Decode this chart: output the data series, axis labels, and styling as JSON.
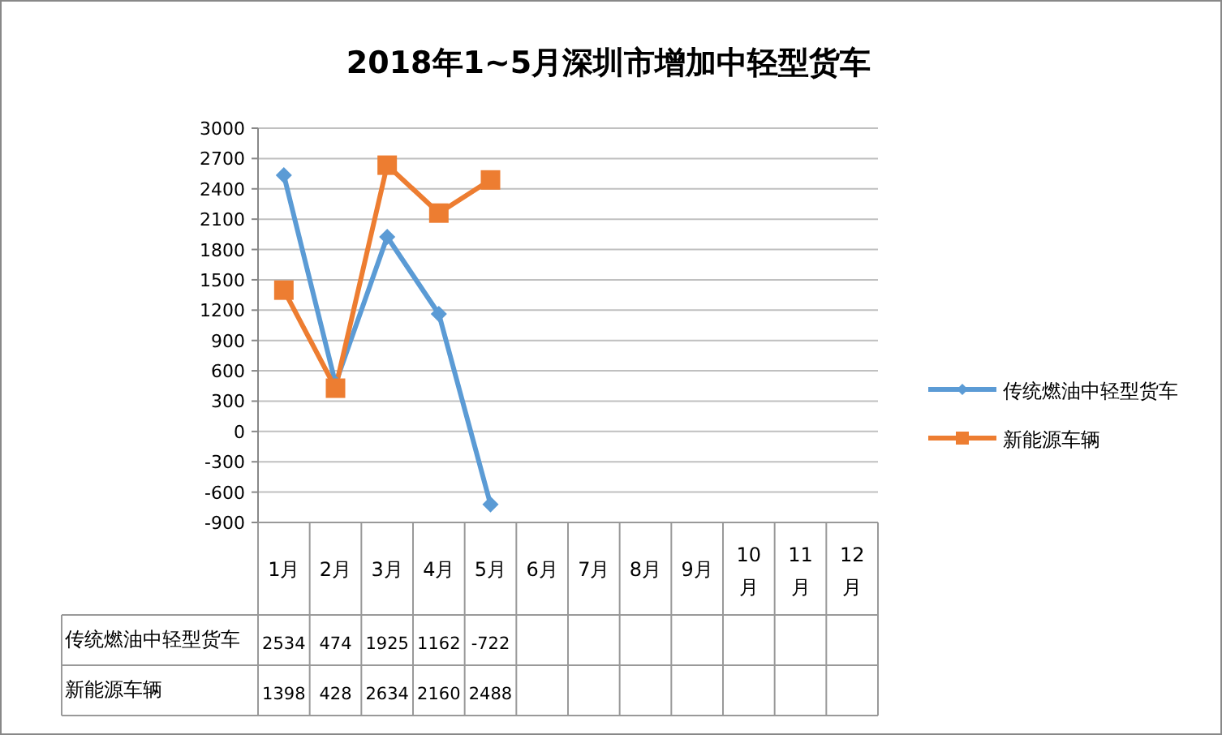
{
  "chart_data": {
    "type": "line",
    "title": "2018年1~5月深圳市增加中轻型货车",
    "categories": [
      "1月",
      "2月",
      "3月",
      "4月",
      "5月",
      "6月",
      "7月",
      "8月",
      "9月",
      "10月",
      "11月",
      "12月"
    ],
    "series": [
      {
        "name": "传统燃油中轻型货车",
        "color": "#5b9bd5",
        "marker": "diamond",
        "values": [
          2534,
          474,
          1925,
          1162,
          -722,
          null,
          null,
          null,
          null,
          null,
          null,
          null
        ]
      },
      {
        "name": "新能源车辆",
        "color": "#ed7d31",
        "marker": "square",
        "values": [
          1398,
          428,
          2634,
          2160,
          2488,
          null,
          null,
          null,
          null,
          null,
          null,
          null
        ]
      }
    ],
    "ylim": [
      -900,
      3000
    ],
    "yticks": [
      -900,
      -600,
      -300,
      0,
      300,
      600,
      900,
      1200,
      1500,
      1800,
      2100,
      2400,
      2700,
      3000
    ],
    "grid": "y",
    "legend": "right",
    "data_labels": true,
    "line_style": "solid"
  }
}
